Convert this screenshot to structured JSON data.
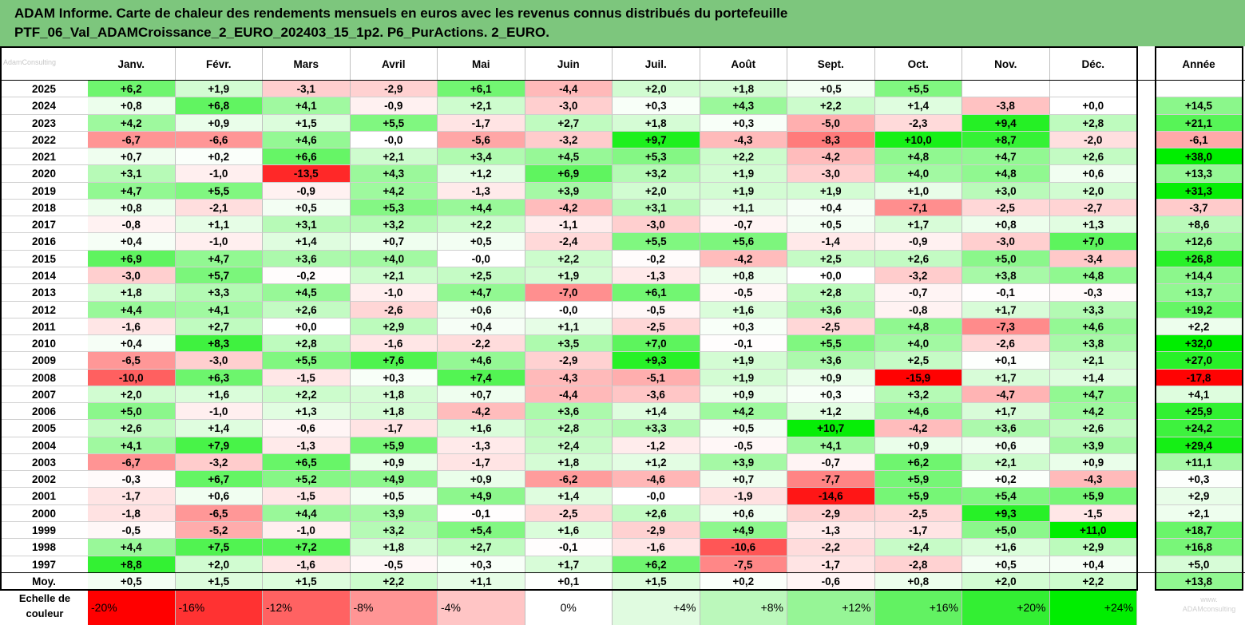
{
  "title_line1": "ADAM Informe. Carte de chaleur des rendements mensuels en euros avec les revenus connus distribués du portefeuille",
  "title_line2": "PTF_06_Val_ADAMCroissance_2_EURO_202403_15_1p2. P6_PurActions. 2_EURO.",
  "watermark_left": "AdamConsulting",
  "watermark_right": "www.\nADAMconsulting",
  "legend_title": "Echelle de couleur",
  "chart_data": {
    "type": "heatmap",
    "title": "ADAM Informe. Carte de chaleur des rendements mensuels en euros avec les revenus connus distribués du portefeuille PTF_06_Val_ADAMCroissance_2_EURO_202403_15_1p2. P6_PurActions. 2_EURO.",
    "columns": [
      "Janv.",
      "Févr.",
      "Mars",
      "Avril",
      "Mai",
      "Juin",
      "Juil.",
      "Août",
      "Sept.",
      "Oct.",
      "Nov.",
      "Déc."
    ],
    "annual_header": "Année",
    "average_label": "Moy.",
    "color_negative_max": "#ff0000",
    "color_positive_max": "#00ee00",
    "rows": [
      {
        "year": "2025",
        "months": [
          "+6,2",
          "+1,9",
          "-3,1",
          "-2,9",
          "+6,1",
          "-4,4",
          "+2,0",
          "+1,8",
          "+0,5",
          "+5,5",
          "",
          ""
        ],
        "annual": ""
      },
      {
        "year": "2024",
        "months": [
          "+0,8",
          "+6,8",
          "+4,1",
          "-0,9",
          "+2,1",
          "-3,0",
          "+0,3",
          "+4,3",
          "+2,2",
          "+1,4",
          "-3,8",
          "+0,0"
        ],
        "annual": "+14,5"
      },
      {
        "year": "2023",
        "months": [
          "+4,2",
          "+0,9",
          "+1,5",
          "+5,5",
          "-1,7",
          "+2,7",
          "+1,8",
          "+0,3",
          "-5,0",
          "-2,3",
          "+9,4",
          "+2,8"
        ],
        "annual": "+21,1"
      },
      {
        "year": "2022",
        "months": [
          "-6,7",
          "-6,6",
          "+4,6",
          "-0,0",
          "-5,6",
          "-3,2",
          "+9,7",
          "-4,3",
          "-8,3",
          "+10,0",
          "+8,7",
          "-2,0"
        ],
        "annual": "-6,1"
      },
      {
        "year": "2021",
        "months": [
          "+0,7",
          "+0,2",
          "+6,6",
          "+2,1",
          "+3,4",
          "+4,5",
          "+5,3",
          "+2,2",
          "-4,2",
          "+4,8",
          "+4,7",
          "+2,6"
        ],
        "annual": "+38,0"
      },
      {
        "year": "2020",
        "months": [
          "+3,1",
          "-1,0",
          "-13,5",
          "+4,3",
          "+1,2",
          "+6,9",
          "+3,2",
          "+1,9",
          "-3,0",
          "+4,0",
          "+4,8",
          "+0,6"
        ],
        "annual": "+13,3"
      },
      {
        "year": "2019",
        "months": [
          "+4,7",
          "+5,5",
          "-0,9",
          "+4,2",
          "-1,3",
          "+3,9",
          "+2,0",
          "+1,9",
          "+1,9",
          "+1,0",
          "+3,0",
          "+2,0"
        ],
        "annual": "+31,3"
      },
      {
        "year": "2018",
        "months": [
          "+0,8",
          "-2,1",
          "+0,5",
          "+5,3",
          "+4,4",
          "-4,2",
          "+3,1",
          "+1,1",
          "+0,4",
          "-7,1",
          "-2,5",
          "-2,7"
        ],
        "annual": "-3,7"
      },
      {
        "year": "2017",
        "months": [
          "-0,8",
          "+1,1",
          "+3,1",
          "+3,2",
          "+2,2",
          "-1,1",
          "-3,0",
          "-0,7",
          "+0,5",
          "+1,7",
          "+0,8",
          "+1,3"
        ],
        "annual": "+8,6"
      },
      {
        "year": "2016",
        "months": [
          "+0,4",
          "-1,0",
          "+1,4",
          "+0,7",
          "+0,5",
          "-2,4",
          "+5,5",
          "+5,6",
          "-1,4",
          "-0,9",
          "-3,0",
          "+7,0"
        ],
        "annual": "+12,6"
      },
      {
        "year": "2015",
        "months": [
          "+6,9",
          "+4,7",
          "+3,6",
          "+4,0",
          "-0,0",
          "+2,2",
          "-0,2",
          "-4,2",
          "+2,5",
          "+2,6",
          "+5,0",
          "-3,4"
        ],
        "annual": "+26,8"
      },
      {
        "year": "2014",
        "months": [
          "-3,0",
          "+5,7",
          "-0,2",
          "+2,1",
          "+2,5",
          "+1,9",
          "-1,3",
          "+0,8",
          "+0,0",
          "-3,2",
          "+3,8",
          "+4,8"
        ],
        "annual": "+14,4"
      },
      {
        "year": "2013",
        "months": [
          "+1,8",
          "+3,3",
          "+4,5",
          "-1,0",
          "+4,7",
          "-7,0",
          "+6,1",
          "-0,5",
          "+2,8",
          "-0,7",
          "-0,1",
          "-0,3"
        ],
        "annual": "+13,7"
      },
      {
        "year": "2012",
        "months": [
          "+4,4",
          "+4,1",
          "+2,6",
          "-2,6",
          "+0,6",
          "-0,0",
          "-0,5",
          "+1,6",
          "+3,6",
          "-0,8",
          "+1,7",
          "+3,3"
        ],
        "annual": "+19,2"
      },
      {
        "year": "2011",
        "months": [
          "-1,6",
          "+2,7",
          "+0,0",
          "+2,9",
          "+0,4",
          "+1,1",
          "-2,5",
          "+0,3",
          "-2,5",
          "+4,8",
          "-7,3",
          "+4,6"
        ],
        "annual": "+2,2"
      },
      {
        "year": "2010",
        "months": [
          "+0,4",
          "+8,3",
          "+2,8",
          "-1,6",
          "-2,2",
          "+3,5",
          "+7,0",
          "-0,1",
          "+5,5",
          "+4,0",
          "-2,6",
          "+3,8"
        ],
        "annual": "+32,0"
      },
      {
        "year": "2009",
        "months": [
          "-6,5",
          "-3,0",
          "+5,5",
          "+7,6",
          "+4,6",
          "-2,9",
          "+9,3",
          "+1,9",
          "+3,6",
          "+2,5",
          "+0,1",
          "+2,1"
        ],
        "annual": "+27,0"
      },
      {
        "year": "2008",
        "months": [
          "-10,0",
          "+6,3",
          "-1,5",
          "+0,3",
          "+7,4",
          "-4,3",
          "-5,1",
          "+1,9",
          "+0,9",
          "-15,9",
          "+1,7",
          "+1,4"
        ],
        "annual": "-17,8"
      },
      {
        "year": "2007",
        "months": [
          "+2,0",
          "+1,6",
          "+2,2",
          "+1,8",
          "+0,7",
          "-4,4",
          "-3,6",
          "+0,9",
          "+0,3",
          "+3,2",
          "-4,7",
          "+4,7"
        ],
        "annual": "+4,1"
      },
      {
        "year": "2006",
        "months": [
          "+5,0",
          "-1,0",
          "+1,3",
          "+1,8",
          "-4,2",
          "+3,6",
          "+1,4",
          "+4,2",
          "+1,2",
          "+4,6",
          "+1,7",
          "+4,2"
        ],
        "annual": "+25,9"
      },
      {
        "year": "2005",
        "months": [
          "+2,6",
          "+1,4",
          "-0,6",
          "-1,7",
          "+1,6",
          "+2,8",
          "+3,3",
          "+0,5",
          "+10,7",
          "-4,2",
          "+3,6",
          "+2,6"
        ],
        "annual": "+24,2"
      },
      {
        "year": "2004",
        "months": [
          "+4,1",
          "+7,9",
          "-1,3",
          "+5,9",
          "-1,3",
          "+2,4",
          "-1,2",
          "-0,5",
          "+4,1",
          "+0,9",
          "+0,6",
          "+3,9"
        ],
        "annual": "+29,4"
      },
      {
        "year": "2003",
        "months": [
          "-6,7",
          "-3,2",
          "+6,5",
          "+0,9",
          "-1,7",
          "+1,8",
          "+1,2",
          "+3,9",
          "-0,7",
          "+6,2",
          "+2,1",
          "+0,9"
        ],
        "annual": "+11,1"
      },
      {
        "year": "2002",
        "months": [
          "-0,3",
          "+6,7",
          "+5,2",
          "+4,9",
          "+0,9",
          "-6,2",
          "-4,6",
          "+0,7",
          "-7,7",
          "+5,9",
          "+0,2",
          "-4,3"
        ],
        "annual": "+0,3"
      },
      {
        "year": "2001",
        "months": [
          "-1,7",
          "+0,6",
          "-1,5",
          "+0,5",
          "+4,9",
          "+1,4",
          "-0,0",
          "-1,9",
          "-14,6",
          "+5,9",
          "+5,4",
          "+5,9"
        ],
        "annual": "+2,9"
      },
      {
        "year": "2000",
        "months": [
          "-1,8",
          "-6,5",
          "+4,4",
          "+3,9",
          "-0,1",
          "-2,5",
          "+2,6",
          "+0,6",
          "-2,9",
          "-2,5",
          "+9,3",
          "-1,5"
        ],
        "annual": "+2,1"
      },
      {
        "year": "1999",
        "months": [
          "-0,5",
          "-5,2",
          "-1,0",
          "+3,2",
          "+5,4",
          "+1,6",
          "-2,9",
          "+4,9",
          "-1,3",
          "-1,7",
          "+5,0",
          "+11,0"
        ],
        "annual": "+18,7"
      },
      {
        "year": "1998",
        "months": [
          "+4,4",
          "+7,5",
          "+7,2",
          "+1,8",
          "+2,7",
          "-0,1",
          "-1,6",
          "-10,6",
          "-2,2",
          "+2,4",
          "+1,6",
          "+2,9"
        ],
        "annual": "+16,8"
      },
      {
        "year": "1997",
        "months": [
          "+8,8",
          "+2,0",
          "-1,6",
          "-0,5",
          "+0,3",
          "+1,7",
          "+6,2",
          "-7,5",
          "-1,7",
          "-2,8",
          "+0,5",
          "+0,4"
        ],
        "annual": "+5,0"
      }
    ],
    "average": {
      "months": [
        "+0,5",
        "+1,5",
        "+1,5",
        "+2,2",
        "+1,1",
        "+0,1",
        "+1,5",
        "+0,2",
        "-0,6",
        "+0,8",
        "+2,0",
        "+2,2"
      ],
      "annual": "+13,8"
    },
    "legend": [
      {
        "label": "-20%",
        "value": -20,
        "color": "#ff0000"
      },
      {
        "label": "-16%",
        "value": -16,
        "color": "#ff3232"
      },
      {
        "label": "-12%",
        "value": -12,
        "color": "#ff6262"
      },
      {
        "label": "-8%",
        "value": -8,
        "color": "#ff9595"
      },
      {
        "label": "-4%",
        "value": -4,
        "color": "#ffc5c5"
      },
      {
        "label": "0%",
        "value": 0,
        "color": "#ffffff"
      },
      {
        "label": "+4%",
        "value": 4,
        "color": "#e0fbe0"
      },
      {
        "label": "+8%",
        "value": 8,
        "color": "#bbf8bb"
      },
      {
        "label": "+12%",
        "value": 12,
        "color": "#96f596"
      },
      {
        "label": "+16%",
        "value": 16,
        "color": "#62f262"
      },
      {
        "label": "+20%",
        "value": 20,
        "color": "#33ef33"
      },
      {
        "label": "+24%",
        "value": 24,
        "color": "#00ee00"
      }
    ]
  }
}
